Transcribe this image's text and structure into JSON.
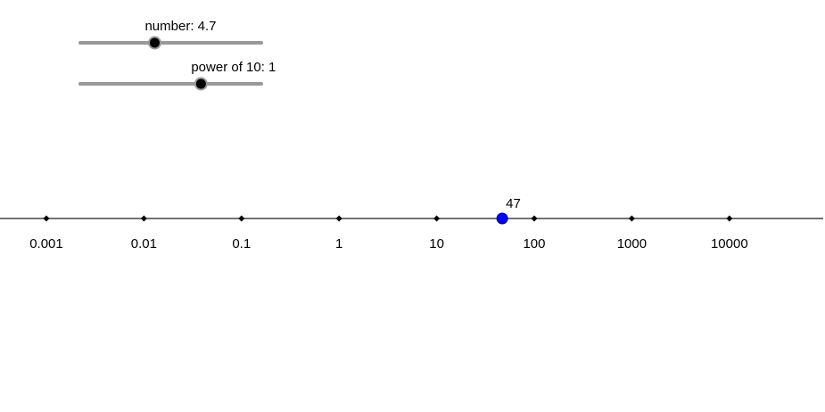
{
  "sliders": [
    {
      "label": "number: 4.7",
      "value": 4.7,
      "min": 1,
      "max": 10
    },
    {
      "label": "power of 10: 1",
      "value": 1,
      "min": -3,
      "max": 3
    }
  ],
  "number_line": {
    "log_scale": true,
    "xlim": [
      0.000335,
      91500
    ],
    "xticks": [
      0.001,
      0.01,
      0.1,
      1,
      10,
      100,
      1000,
      10000
    ],
    "point": {
      "value": 47,
      "label": "47",
      "color": "#0000ff"
    }
  }
}
